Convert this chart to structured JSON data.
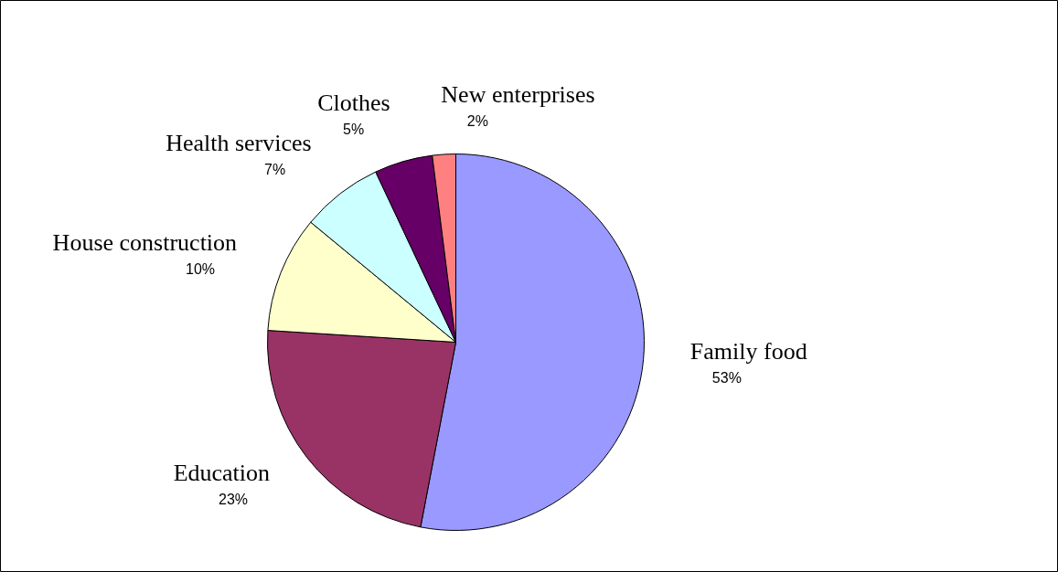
{
  "chart_data": {
    "type": "pie",
    "categories": [
      "Family food",
      "Education",
      "House construction",
      "Health services",
      "Clothes",
      "New enterprises"
    ],
    "values": [
      53,
      23,
      10,
      7,
      5,
      2
    ],
    "colors": [
      "#9999ff",
      "#993366",
      "#ffffcc",
      "#ccffff",
      "#660066",
      "#ff8080"
    ],
    "value_labels": [
      "53%",
      "23%",
      "10%",
      "7%",
      "5%",
      "2%"
    ]
  }
}
